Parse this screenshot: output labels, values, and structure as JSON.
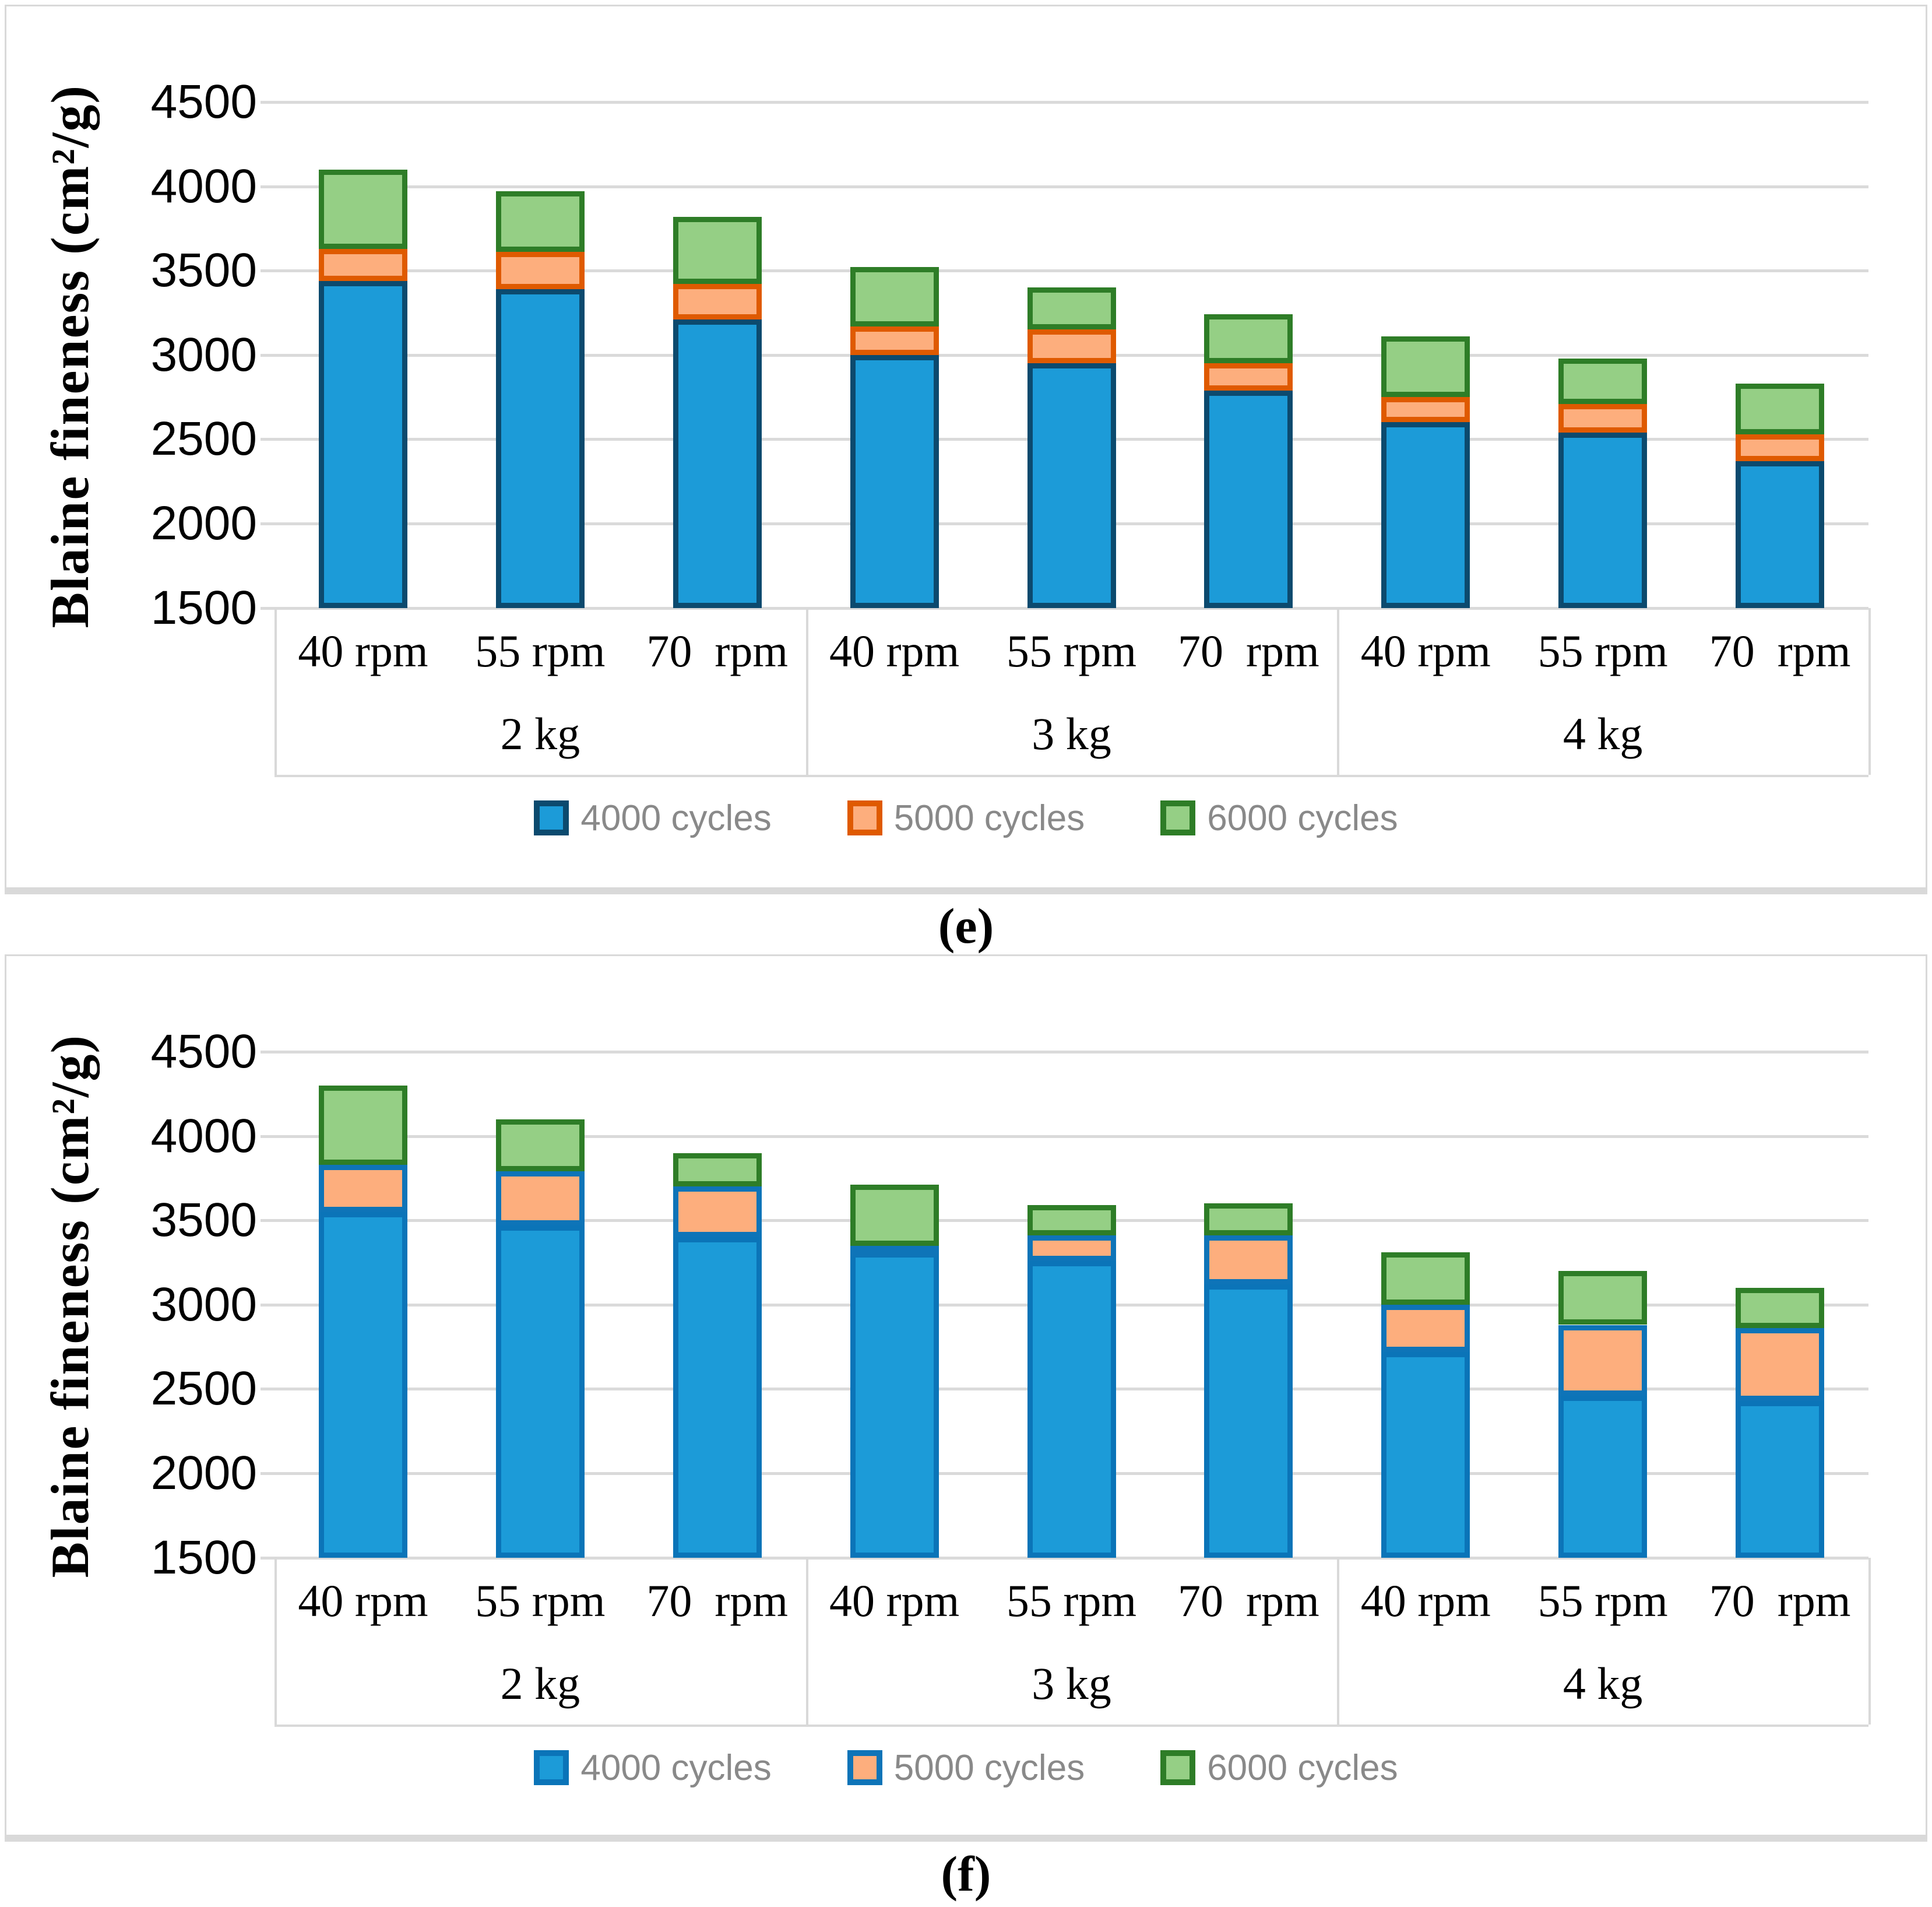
{
  "figure": {
    "captions": [
      "(e)",
      "(f)"
    ],
    "colors": {
      "frame": "#D9D9D9",
      "gridline": "#DADADA",
      "tick_label": "#000000",
      "legend_text": "#898989",
      "axis_title": "#000000",
      "background": "#FFFFFF"
    }
  },
  "chart_data": [
    {
      "type": "bar",
      "stacked": true,
      "panel": "e",
      "title": "(e)",
      "ylabel": "Blaine fineness (cm²/g)",
      "xlabel": "",
      "ylim": [
        1500,
        4500
      ],
      "ytick_step": 500,
      "yticks": [
        4500,
        4000,
        3500,
        3000,
        2500,
        2000,
        1500
      ],
      "grid": true,
      "legend_position": "bottom",
      "groups": [
        {
          "label": "2 kg",
          "items": [
            "40 rpm",
            "55 rpm",
            "70  rpm"
          ]
        },
        {
          "label": "3 kg",
          "items": [
            "40 rpm",
            "55 rpm",
            "70  rpm"
          ]
        },
        {
          "label": "4 kg",
          "items": [
            "40 rpm",
            "55 rpm",
            "70  rpm"
          ]
        }
      ],
      "values_are": "cumulative stack tops in cm2/g read from axis",
      "series": [
        {
          "name": "4000 cycles",
          "fill": "#1C9BD8",
          "border": "#0C4A6E",
          "values": [
            3440,
            3390,
            3210,
            3000,
            2950,
            2790,
            2600,
            2540,
            2370
          ]
        },
        {
          "name": "5000 cycles",
          "fill": "#FDAE7D",
          "border": "#DF5A00",
          "values": [
            3630,
            3610,
            3420,
            3170,
            3150,
            2950,
            2750,
            2710,
            2530
          ]
        },
        {
          "name": "6000 cycles",
          "fill": "#95CF85",
          "border": "#2E7D27",
          "values": [
            4100,
            3970,
            3820,
            3520,
            3400,
            3240,
            3110,
            2980,
            2830
          ]
        }
      ]
    },
    {
      "type": "bar",
      "stacked": true,
      "panel": "f",
      "title": "(f)",
      "ylabel": "Blaine fineness (cm²/g)",
      "xlabel": "",
      "ylim": [
        1500,
        4500
      ],
      "ytick_step": 500,
      "yticks": [
        4500,
        4000,
        3500,
        3000,
        2500,
        2000,
        1500
      ],
      "grid": true,
      "legend_position": "bottom",
      "groups": [
        {
          "label": "2 kg",
          "items": [
            "40 rpm",
            "55 rpm",
            "70  rpm"
          ]
        },
        {
          "label": "3 kg",
          "items": [
            "40 rpm",
            "55 rpm",
            "70  rpm"
          ]
        },
        {
          "label": "4 kg",
          "items": [
            "40 rpm",
            "55 rpm",
            "70  rpm"
          ]
        }
      ],
      "values_are": "cumulative stack tops in cm2/g read from axis",
      "series": [
        {
          "name": "4000 cycles",
          "fill": "#1C9BD8",
          "border": "#0B74B8",
          "values": [
            3550,
            3470,
            3400,
            3310,
            3260,
            3120,
            2720,
            2460,
            2430
          ]
        },
        {
          "name": "5000 cycles",
          "fill": "#FDAE7D",
          "border": "#0E74B8",
          "values": [
            3830,
            3790,
            3700,
            3350,
            3410,
            3410,
            3000,
            2880,
            2860
          ]
        },
        {
          "name": "6000 cycles",
          "fill": "#95CF85",
          "border": "#2E7D27",
          "values": [
            4300,
            4100,
            3900,
            3710,
            3590,
            3600,
            3310,
            3200,
            3100
          ]
        }
      ]
    }
  ]
}
